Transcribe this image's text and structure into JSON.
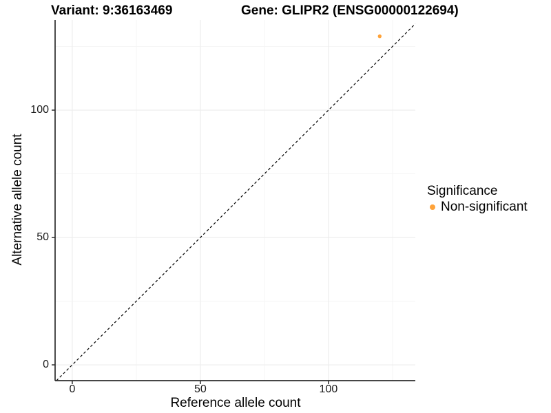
{
  "header": {
    "title_left": "Variant: 9:36163469",
    "title_right": "Gene: GLIPR2 (ENSG00000122694)"
  },
  "axes": {
    "x": {
      "label": "Reference allele count",
      "tick_labels": [
        "0",
        "50",
        "100"
      ]
    },
    "y": {
      "label": "Alternative allele count",
      "tick_labels": [
        "0",
        "50",
        "100"
      ]
    }
  },
  "legend": {
    "title": "Significance",
    "items": [
      {
        "label": "Non-significant",
        "color": "#FFA33A",
        "shape": "circle"
      }
    ]
  },
  "chart_data": {
    "type": "scatter",
    "title_left": "Variant: 9:36163469",
    "title_right": "Gene: GLIPR2 (ENSG00000122694)",
    "xlabel": "Reference allele count",
    "ylabel": "Alternative allele count",
    "xlim": [
      -6.7,
      133.9
    ],
    "ylim": [
      -6.2,
      135.4
    ],
    "x_ticks": [
      0,
      50,
      100
    ],
    "y_ticks": [
      0,
      50,
      100
    ],
    "x_minor_gridlines": [
      25,
      75,
      125
    ],
    "y_minor_gridlines": [
      25,
      75,
      125
    ],
    "grid": "major and minor, very light gray, white panel background",
    "legend_position": "right",
    "series": [
      {
        "name": "Non-significant",
        "color": "#FFA33A",
        "points": [
          {
            "x": 120,
            "y": 129
          }
        ]
      }
    ],
    "reference_line": {
      "type": "identity y=x",
      "style": "dashed",
      "color": "#000000"
    }
  },
  "colors": {
    "background": "#FFFFFF",
    "point": "#FFA33A",
    "grid_major": "#EDEDED",
    "grid_minor": "#F5F5F5",
    "axis_line": "#2B2B2B",
    "text": "#000000"
  }
}
